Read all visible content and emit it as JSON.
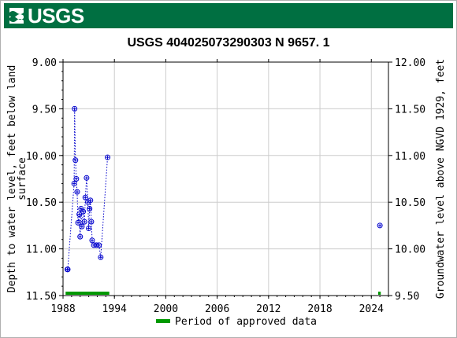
{
  "header": {
    "logo_text": "USGS"
  },
  "chart_data": {
    "type": "scatter",
    "title": "USGS 404025073290303 N  9657. 1",
    "ylabel_left": "Depth to water level, feet below land surface",
    "ylabel_left_lines": [
      "Depth to water level, feet below land",
      "surface"
    ],
    "ylabel_right": "Groundwater level above NGVD 1929, feet",
    "xlim": [
      1988,
      2026
    ],
    "ylim_left": [
      9.0,
      11.5
    ],
    "ylim_right": [
      12.0,
      9.5
    ],
    "x_ticks": [
      1988,
      1994,
      2000,
      2006,
      2012,
      2018,
      2024
    ],
    "x_tick_labels": [
      "1988",
      "1994",
      "2000",
      "2006",
      "2012",
      "2018",
      "2024"
    ],
    "y_left_ticks": [
      9.0,
      9.5,
      10.0,
      10.5,
      11.0,
      11.5
    ],
    "y_left_tick_labels": [
      "9.00",
      "9.50",
      "10.00",
      "10.50",
      "11.00",
      "11.50"
    ],
    "y_right_ticks": [
      12.0,
      11.5,
      11.0,
      10.5,
      10.0,
      9.5
    ],
    "y_right_tick_labels": [
      "12.00",
      "11.50",
      "11.00",
      "10.50",
      "10.00",
      "9.50"
    ],
    "grid": true,
    "series": [
      {
        "marker_color": "#0000cc",
        "connected": true,
        "points": [
          [
            1988.5,
            11.22
          ],
          [
            1988.55,
            11.22
          ],
          [
            1989.3,
            10.3
          ],
          [
            1989.35,
            9.5
          ],
          [
            1989.45,
            10.05
          ],
          [
            1989.55,
            10.25
          ],
          [
            1989.65,
            10.39
          ],
          [
            1989.75,
            10.72
          ],
          [
            1989.9,
            10.63
          ],
          [
            1990.0,
            10.87
          ],
          [
            1990.1,
            10.57
          ],
          [
            1990.2,
            10.76
          ],
          [
            1990.35,
            10.6
          ],
          [
            1990.5,
            10.71
          ],
          [
            1990.6,
            10.45
          ],
          [
            1990.75,
            10.24
          ],
          [
            1990.9,
            10.5
          ],
          [
            1991.0,
            10.78
          ],
          [
            1991.1,
            10.57
          ],
          [
            1991.2,
            10.48
          ],
          [
            1991.3,
            10.71
          ],
          [
            1991.4,
            10.91
          ],
          [
            1991.6,
            10.96
          ],
          [
            1991.9,
            10.96
          ],
          [
            1992.2,
            10.96
          ],
          [
            1992.4,
            11.09
          ],
          [
            1993.2,
            10.02
          ]
        ]
      },
      {
        "marker_color": "#0000cc",
        "connected": false,
        "points": [
          [
            2025.0,
            10.75
          ]
        ]
      }
    ],
    "approved_periods": [
      [
        1988.3,
        1993.4
      ],
      [
        2024.8,
        2025.1
      ]
    ],
    "approved_color": "#009900",
    "legend": {
      "placement": "bottom-center",
      "label": "Period of approved data"
    }
  }
}
